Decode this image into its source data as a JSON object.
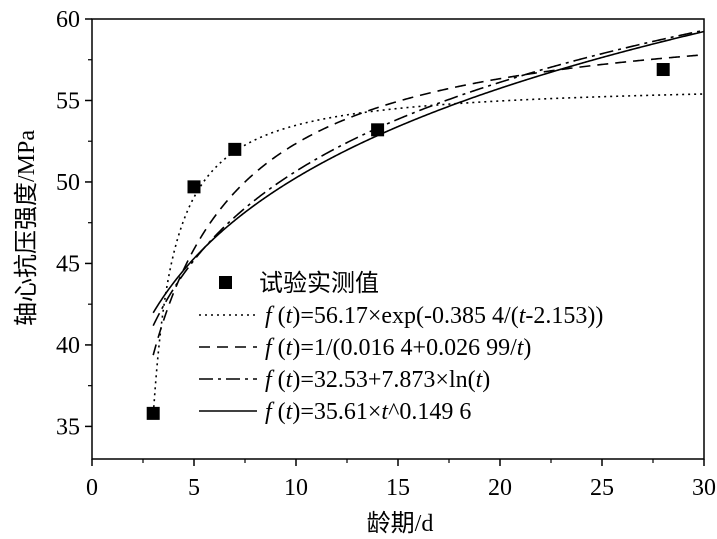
{
  "chart_data": {
    "type": "scatter",
    "xlabel": "龄期/d",
    "ylabel": "轴心抗压强度/MPa",
    "xlim": [
      0,
      30
    ],
    "ylim": [
      33,
      60
    ],
    "x_ticks": [
      0,
      5,
      10,
      15,
      20,
      25,
      30
    ],
    "y_ticks": [
      35,
      40,
      45,
      50,
      55,
      60
    ],
    "grid": false,
    "legend_position": "bottom-right",
    "series": [
      {
        "name": "试验实测值",
        "kind": "points",
        "marker": "square",
        "x": [
          3,
          5,
          7,
          14,
          28
        ],
        "y": [
          35.8,
          49.7,
          52.0,
          53.2,
          56.9
        ]
      },
      {
        "name_parts": [
          "f",
          " (",
          "t",
          ")=56.17×exp(-0.385 4/(",
          "t",
          "-2.153))"
        ],
        "kind": "curve",
        "dash": "dotted",
        "model": "exp",
        "params": [
          56.17,
          0.3854,
          2.153
        ]
      },
      {
        "name_parts": [
          "f",
          " (",
          "t",
          ")=1/(0.016 4+0.026 99/",
          "t",
          ")"
        ],
        "kind": "curve",
        "dash": "dashed",
        "model": "hyperbolic",
        "params": [
          0.0164,
          0.02699
        ]
      },
      {
        "name_parts": [
          "f",
          " (",
          "t",
          ")=32.53+7.873×ln(",
          "t",
          ")"
        ],
        "kind": "curve",
        "dash": "dashdot",
        "model": "log",
        "params": [
          32.53,
          7.873
        ]
      },
      {
        "name_parts": [
          "f",
          " (",
          "t",
          ")=35.61×",
          "t",
          "^0.149 6"
        ],
        "kind": "curve",
        "dash": "solid",
        "model": "power",
        "params": [
          35.61,
          0.1496
        ]
      }
    ]
  }
}
